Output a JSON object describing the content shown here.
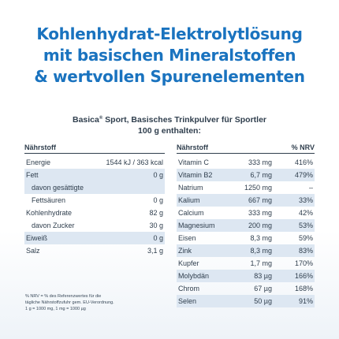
{
  "headline": {
    "line1": "Kohlenhydrat-Elektrolytlösung",
    "line2": "mit basischen Mineralstoffen",
    "line3": "& wertvollen Spurenelementen"
  },
  "subtitle": {
    "brand": "Basica",
    "reg": "®",
    "rest": " Sport, Basisches Trinkpulver für Sportler",
    "line2": "100 g enthalten:"
  },
  "left_table": {
    "header": "Nährstoff",
    "rows": [
      {
        "name": "Energie",
        "value": "1544 kJ / 363 kcal",
        "shade": false
      },
      {
        "name": "Fett",
        "value": "0 g",
        "shade": true
      },
      {
        "name": "davon gesättigte",
        "value": "",
        "shade": true,
        "indent": true
      },
      {
        "name": "Fettsäuren",
        "value": "0 g",
        "shade": false,
        "indent": true
      },
      {
        "name": "Kohlenhydrate",
        "value": "82 g",
        "shade": false
      },
      {
        "name": "davon Zucker",
        "value": "30 g",
        "shade": false,
        "indent": true
      },
      {
        "name": "Eiweiß",
        "value": "0 g",
        "shade": true
      },
      {
        "name": "Salz",
        "value": "3,1 g",
        "shade": false
      }
    ]
  },
  "right_table": {
    "header": "Nährstoff",
    "header_nrv": "% NRV",
    "rows": [
      {
        "name": "Vitamin C",
        "value": "333 mg",
        "nrv": "416%",
        "shade": false
      },
      {
        "name": "Vitamin B2",
        "value": "6,7 mg",
        "nrv": "479%",
        "shade": true
      },
      {
        "name": "Natrium",
        "value": "1250 mg",
        "nrv": "–",
        "shade": false
      },
      {
        "name": "Kalium",
        "value": "667 mg",
        "nrv": "33%",
        "shade": true
      },
      {
        "name": "Calcium",
        "value": "333 mg",
        "nrv": "42%",
        "shade": false
      },
      {
        "name": "Magnesium",
        "value": "200 mg",
        "nrv": "53%",
        "shade": true
      },
      {
        "name": "Eisen",
        "value": "8,3 mg",
        "nrv": "59%",
        "shade": false
      },
      {
        "name": "Zink",
        "value": "8,3 mg",
        "nrv": "83%",
        "shade": true
      },
      {
        "name": "Kupfer",
        "value": "1,7 mg",
        "nrv": "170%",
        "shade": false
      },
      {
        "name": "Molybdän",
        "value": "83 µg",
        "nrv": "166%",
        "shade": true
      },
      {
        "name": "Chrom",
        "value": "67 µg",
        "nrv": "168%",
        "shade": false
      },
      {
        "name": "Selen",
        "value": "50 µg",
        "nrv": "91%",
        "shade": true
      }
    ]
  },
  "footnote": {
    "line1": "% NRV = % des Referenzwertes für die",
    "line2": "tägliche Nährstoffzufuhr gem. EU-Verordnung.",
    "line3": "1 g = 1000 mg, 1 mg = 1000 µg"
  },
  "colors": {
    "headline": "#1a73bf",
    "text": "#2f3e4d",
    "row_shade": "#dde7f2"
  }
}
